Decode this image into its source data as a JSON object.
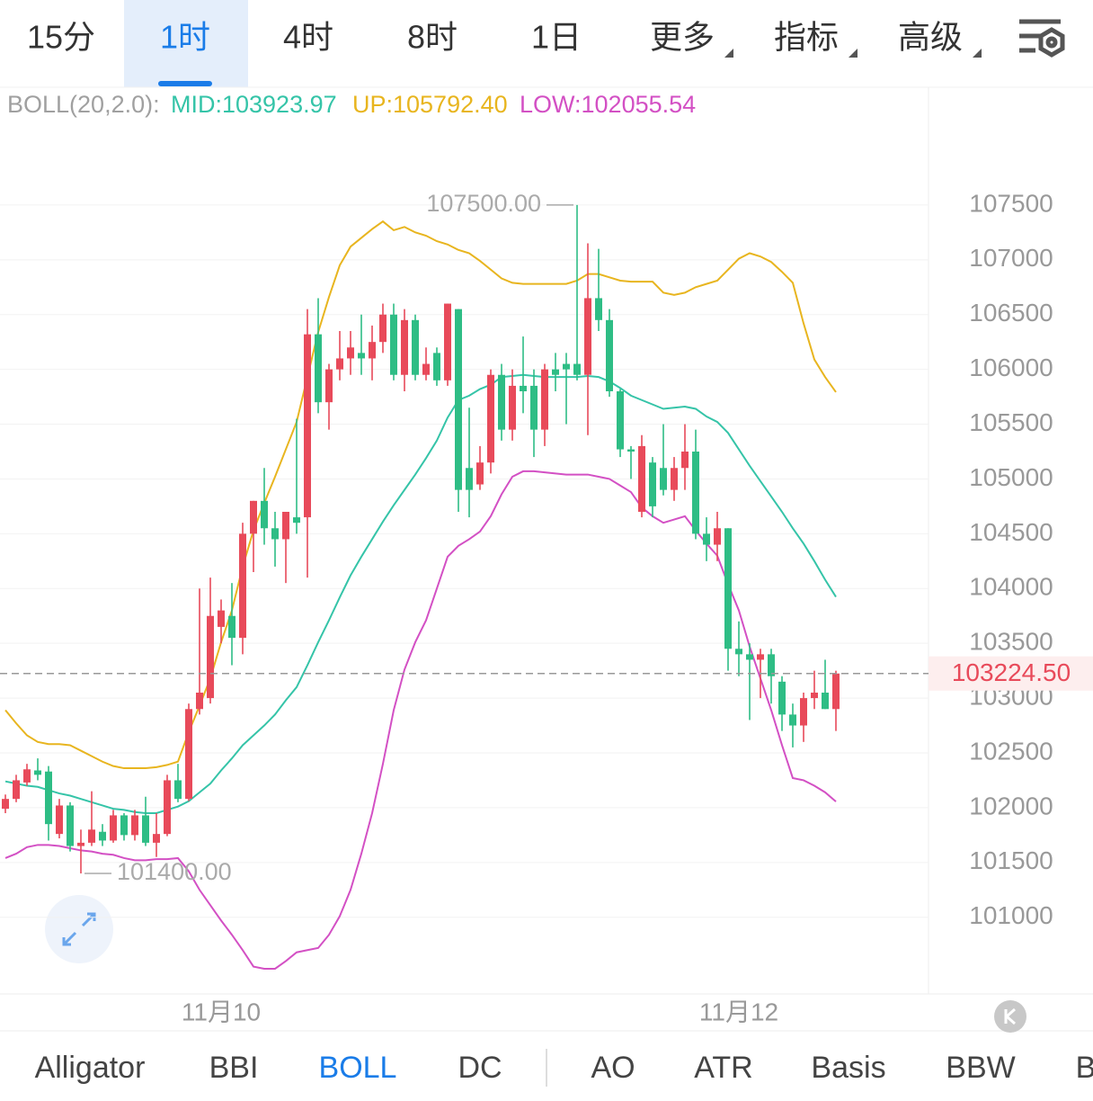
{
  "tabs": {
    "items": [
      "15分",
      "1时",
      "4时",
      "8时",
      "1日",
      "更多",
      "指标",
      "高级"
    ],
    "active": 1
  },
  "indicator_title": "BOLL(20,2.0):",
  "chart_data": {
    "type": "candlestick",
    "categories": [
      null,
      null,
      null,
      null,
      null,
      null,
      null,
      null,
      null,
      null,
      null,
      null,
      null,
      null,
      null,
      null,
      null,
      null,
      null,
      null,
      "11月10",
      null,
      null,
      null,
      null,
      null,
      null,
      null,
      null,
      null,
      null,
      null,
      null,
      null,
      null,
      null,
      null,
      null,
      null,
      null,
      null,
      null,
      null,
      null,
      null,
      null,
      null,
      null,
      null,
      null,
      null,
      null,
      null,
      null,
      null,
      null,
      null,
      null,
      null,
      null,
      null,
      null,
      null,
      null,
      null,
      null,
      null,
      null,
      "11月12",
      null,
      null,
      null,
      null,
      null,
      null,
      null,
      null,
      null
    ],
    "open": [
      101990,
      102080,
      102230,
      102340,
      102330,
      101760,
      102020,
      101650,
      101680,
      101780,
      101700,
      101930,
      101750,
      101930,
      101680,
      101760,
      102250,
      102080,
      102900,
      103000,
      103650,
      103750,
      103550,
      104500,
      104800,
      104550,
      104450,
      104650,
      104650,
      106320,
      105700,
      106000,
      106100,
      106150,
      106100,
      106250,
      106500,
      105950,
      106450,
      105950,
      106150,
      105900,
      106550,
      105100,
      104950,
      105150,
      105950,
      105450,
      105850,
      105850,
      105450,
      106000,
      106050,
      106050,
      105950,
      106650,
      106450,
      105800,
      105270,
      104700,
      105150,
      105100,
      104900,
      105100,
      105250,
      104500,
      104400,
      104550,
      103450,
      103400,
      103350,
      103400,
      103150,
      102850,
      102750,
      103000,
      103050,
      102900
    ],
    "high": [
      102120,
      102300,
      102400,
      102450,
      102380,
      102080,
      102050,
      101800,
      102150,
      101850,
      101980,
      101950,
      101980,
      102100,
      101950,
      102300,
      102400,
      102950,
      104000,
      104100,
      103900,
      104050,
      104600,
      104800,
      105100,
      104700,
      104700,
      105550,
      106550,
      106650,
      106050,
      106350,
      106350,
      106500,
      106400,
      106600,
      106600,
      106550,
      106500,
      106200,
      106200,
      106600,
      106550,
      105650,
      105300,
      106000,
      106050,
      106000,
      106300,
      106000,
      106050,
      106150,
      106150,
      107500,
      107150,
      107100,
      106550,
      105820,
      105300,
      105400,
      105200,
      105500,
      105200,
      105500,
      105450,
      104650,
      104700,
      104550,
      103700,
      103500,
      103450,
      103450,
      103200,
      102950,
      103050,
      103250,
      103350,
      103250
    ],
    "low": [
      101950,
      102050,
      102200,
      102250,
      101700,
      101720,
      101600,
      101400,
      101650,
      101650,
      101680,
      101700,
      101700,
      101650,
      101550,
      101740,
      102050,
      102060,
      102850,
      102950,
      103500,
      103300,
      103400,
      104150,
      104400,
      104200,
      104050,
      104500,
      104100,
      105600,
      105450,
      105900,
      105950,
      105950,
      105900,
      106150,
      105900,
      105800,
      105900,
      105900,
      105850,
      105850,
      104700,
      104650,
      104900,
      105050,
      105350,
      105350,
      105600,
      105200,
      105300,
      105800,
      105500,
      105900,
      105400,
      106350,
      105750,
      105200,
      105000,
      104650,
      104650,
      104850,
      104800,
      104900,
      104450,
      104250,
      104250,
      103250,
      103200,
      102800,
      103000,
      102950,
      102700,
      102550,
      102600,
      102900,
      102900,
      102700
    ],
    "close": [
      102080,
      102250,
      102350,
      102300,
      101850,
      102020,
      101650,
      101680,
      101800,
      101700,
      101930,
      101750,
      101930,
      101680,
      101760,
      102250,
      102080,
      102900,
      103050,
      103750,
      103800,
      103550,
      104500,
      104800,
      104550,
      104450,
      104700,
      104600,
      106320,
      105700,
      106000,
      106100,
      106200,
      106100,
      106250,
      106500,
      105950,
      106450,
      105950,
      106050,
      105900,
      106600,
      104900,
      104900,
      105150,
      105950,
      105450,
      105850,
      105800,
      105450,
      106000,
      105950,
      106000,
      105950,
      106650,
      106450,
      105800,
      105270,
      105250,
      105300,
      104750,
      104900,
      105100,
      105250,
      104500,
      104400,
      104550,
      103450,
      103400,
      103350,
      103400,
      103200,
      102850,
      102750,
      103000,
      103050,
      102900,
      103224.5
    ],
    "up_color": "#e84a5a",
    "down_color": "#2ebd85",
    "lines": [
      {
        "name": "MID:103923.97",
        "color": "#35c4a8",
        "values": [
          102240,
          102220,
          102200,
          102190,
          102160,
          102130,
          102110,
          102080,
          102050,
          102020,
          101990,
          101980,
          101960,
          101950,
          101950,
          101980,
          102010,
          102060,
          102140,
          102220,
          102340,
          102450,
          102570,
          102660,
          102750,
          102850,
          102980,
          103100,
          103300,
          103510,
          103710,
          103920,
          104120,
          104290,
          104450,
          104610,
          104760,
          104900,
          105040,
          105190,
          105350,
          105560,
          105720,
          105760,
          105820,
          105860,
          105930,
          105940,
          105950,
          105940,
          105930,
          105930,
          105930,
          105930,
          105940,
          105930,
          105890,
          105830,
          105760,
          105720,
          105680,
          105640,
          105650,
          105660,
          105640,
          105570,
          105520,
          105420,
          105270,
          105120,
          104980,
          104840,
          104700,
          104550,
          104410,
          104250,
          104080,
          103923.97
        ]
      },
      {
        "name": "UP:105792.40",
        "color": "#e8b51f",
        "values": [
          102890,
          102770,
          102660,
          102600,
          102580,
          102580,
          102570,
          102520,
          102470,
          102420,
          102380,
          102360,
          102360,
          102360,
          102370,
          102390,
          102420,
          102690,
          102930,
          103180,
          103510,
          103800,
          104200,
          104530,
          104780,
          105020,
          105270,
          105520,
          105930,
          106340,
          106660,
          106950,
          107120,
          107200,
          107280,
          107350,
          107270,
          107300,
          107250,
          107220,
          107170,
          107140,
          107090,
          107060,
          106990,
          106910,
          106830,
          106790,
          106780,
          106780,
          106780,
          106780,
          106780,
          106810,
          106870,
          106870,
          106840,
          106810,
          106800,
          106800,
          106800,
          106700,
          106680,
          106700,
          106750,
          106780,
          106810,
          106910,
          107010,
          107060,
          107030,
          106980,
          106890,
          106790,
          106420,
          106090,
          105930,
          105792.4
        ]
      },
      {
        "name": "LOW:102055.54",
        "color": "#d350c4",
        "values": [
          101540,
          101580,
          101640,
          101660,
          101660,
          101650,
          101630,
          101610,
          101600,
          101580,
          101570,
          101540,
          101520,
          101520,
          101530,
          101530,
          101540,
          101420,
          101250,
          101110,
          100970,
          100840,
          100700,
          100550,
          100530,
          100530,
          100600,
          100680,
          100700,
          100720,
          100840,
          101010,
          101250,
          101580,
          101950,
          102400,
          102890,
          103260,
          103510,
          103710,
          104000,
          104290,
          104390,
          104450,
          104520,
          104660,
          104860,
          105020,
          105070,
          105070,
          105060,
          105050,
          105040,
          105040,
          105040,
          105020,
          105000,
          104940,
          104880,
          104740,
          104660,
          104600,
          104630,
          104660,
          104530,
          104410,
          104300,
          104040,
          103800,
          103470,
          103180,
          102890,
          102570,
          102270,
          102250,
          102200,
          102140,
          102055.54
        ]
      }
    ],
    "ylim": [
      100300,
      108550
    ],
    "yticks": [
      101000,
      101500,
      102000,
      102500,
      103000,
      103500,
      104000,
      104500,
      105000,
      105500,
      106000,
      106500,
      107000,
      107500
    ],
    "grid": true,
    "high_label": "107500.00",
    "low_label": "101400.00",
    "last_price": {
      "value": 103224.5,
      "label": "103224.50"
    }
  },
  "bottom_tabs": {
    "items": [
      "Alligator",
      "BBI",
      "BOLL",
      "DC",
      "AO",
      "ATR",
      "Basis",
      "BBW",
      "B"
    ],
    "active": 2
  }
}
